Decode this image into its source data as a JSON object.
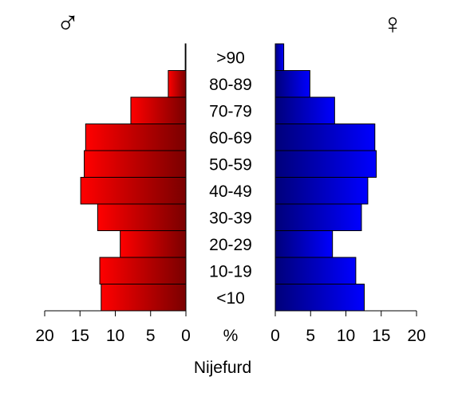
{
  "chart_data": {
    "type": "bar",
    "orientation": "horizontal",
    "layout": "population-pyramid",
    "categories": [
      ">90",
      "80-89",
      "70-79",
      "60-69",
      "50-59",
      "40-49",
      "30-39",
      "20-29",
      "10-19",
      "<10"
    ],
    "series": [
      {
        "name": "♂",
        "side": "left",
        "color_light": "#ff0000",
        "color_dark": "#7a0000",
        "values": [
          0.1,
          2.5,
          7.8,
          14.2,
          14.4,
          14.9,
          12.5,
          9.3,
          12.2,
          12.0
        ]
      },
      {
        "name": "♀",
        "side": "right",
        "color_light": "#0000ff",
        "color_dark": "#00007a",
        "values": [
          1.2,
          4.9,
          8.4,
          14.1,
          14.3,
          13.1,
          12.2,
          8.1,
          11.4,
          12.6
        ]
      }
    ],
    "xlim": [
      0,
      20
    ],
    "x_ticks": [
      20,
      15,
      10,
      5,
      0
    ],
    "x_unit_label": "%",
    "xlabel": "Nijefurd",
    "grid": false,
    "legend": "none"
  }
}
